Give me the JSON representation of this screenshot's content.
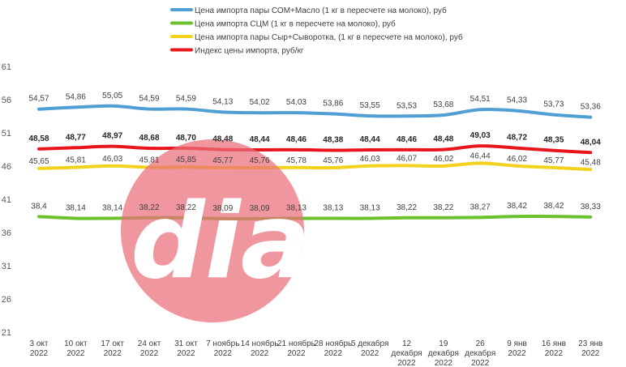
{
  "chart_data": {
    "type": "line",
    "title": "",
    "xlabel": "",
    "ylabel": "",
    "ylim": [
      21,
      61
    ],
    "yticks": [
      21,
      26,
      31,
      36,
      41,
      46,
      51,
      56,
      61
    ],
    "grid": false,
    "legend_position": "top",
    "categories": [
      "3 окт 2022",
      "10 окт 2022",
      "17 окт 2022",
      "24 окт 2022",
      "31 окт 2022",
      "7 ноябрь 2022",
      "14 ноябрь 2022",
      "21 ноябрь 2022",
      "28 ноябрь 2022",
      "5 декабря 2022",
      "12 декабря 2022",
      "19 декабря 2022",
      "26 декабря 2022",
      "9 янв 2022",
      "16 янв 2022",
      "23 янв 2022"
    ],
    "category_lines": [
      [
        "3 окт",
        "2022"
      ],
      [
        "10 окт",
        "2022"
      ],
      [
        "17 окт",
        "2022"
      ],
      [
        "24 окт",
        "2022"
      ],
      [
        "31 окт",
        "2022"
      ],
      [
        "7 ноябрь",
        "2022"
      ],
      [
        "14 ноябрь",
        "2022"
      ],
      [
        "21 ноябрь",
        "2022"
      ],
      [
        "28 ноябрь",
        "2022"
      ],
      [
        "5 декабря",
        "2022"
      ],
      [
        "12",
        "декабря",
        "2022"
      ],
      [
        "19",
        "декабря",
        "2022"
      ],
      [
        "26",
        "декабря",
        "2022"
      ],
      [
        "9 янв",
        "2022"
      ],
      [
        "16 янв",
        "2022"
      ],
      [
        "23 янв",
        "2022"
      ]
    ],
    "series": [
      {
        "name": "Цена импорта пары СОМ+Масло  (1 кг в пересчете на молоко), руб",
        "color": "#4f9ed4",
        "bold_labels": false,
        "labels": [
          "54,57",
          "54,86",
          "55,05",
          "54,59",
          "54,59",
          "54,13",
          "54,02",
          "54,03",
          "53,86",
          "53,55",
          "53,53",
          "53,68",
          "54,51",
          "54,33",
          "53,73",
          "53,36"
        ],
        "values": [
          54.57,
          54.86,
          55.05,
          54.59,
          54.59,
          54.13,
          54.02,
          54.03,
          53.86,
          53.55,
          53.53,
          53.68,
          54.51,
          54.33,
          53.73,
          53.36
        ]
      },
      {
        "name": "Цена импорта СЦМ (1 кг в пересчете на молоко), руб",
        "color": "#6cc22e",
        "bold_labels": false,
        "labels": [
          "38,4",
          "38,14",
          "38,14",
          "38,22",
          "38,22",
          "38,09",
          "38,09",
          "38,13",
          "38,13",
          "38,13",
          "38,22",
          "38,22",
          "38,27",
          "38,42",
          "38,42",
          "38,33"
        ],
        "values": [
          38.4,
          38.14,
          38.14,
          38.22,
          38.22,
          38.09,
          38.09,
          38.13,
          38.13,
          38.13,
          38.22,
          38.22,
          38.27,
          38.42,
          38.42,
          38.33
        ]
      },
      {
        "name": "Цена импорта пары Сыр+Сыворотка, (1 кг в пересчете на молоко), руб",
        "color": "#f2d21c",
        "bold_labels": false,
        "labels": [
          "45,65",
          "45,81",
          "46,03",
          "45,81",
          "45,85",
          "45,77",
          "45,76",
          "45,78",
          "45,76",
          "46,03",
          "46,07",
          "46,02",
          "46,44",
          "46,02",
          "45,77",
          "45,48"
        ],
        "values": [
          45.65,
          45.81,
          46.03,
          45.81,
          45.85,
          45.77,
          45.76,
          45.78,
          45.76,
          46.03,
          46.07,
          46.02,
          46.44,
          46.02,
          45.77,
          45.48
        ]
      },
      {
        "name": "Индекс цены импорта, руб/кг",
        "color": "#e8151c",
        "bold_labels": true,
        "labels": [
          "48,58",
          "48,77",
          "48,97",
          "48,68",
          "48,70",
          "48,48",
          "48,44",
          "48,46",
          "48,38",
          "48,44",
          "48,46",
          "48,48",
          "49,03",
          "48,72",
          "48,35",
          "48,04"
        ],
        "values": [
          48.58,
          48.77,
          48.97,
          48.68,
          48.7,
          48.48,
          48.44,
          48.46,
          48.38,
          48.44,
          48.46,
          48.48,
          49.03,
          48.72,
          48.35,
          48.04
        ]
      }
    ],
    "watermark": {
      "text": "dia",
      "color": "#ea6e78"
    }
  }
}
